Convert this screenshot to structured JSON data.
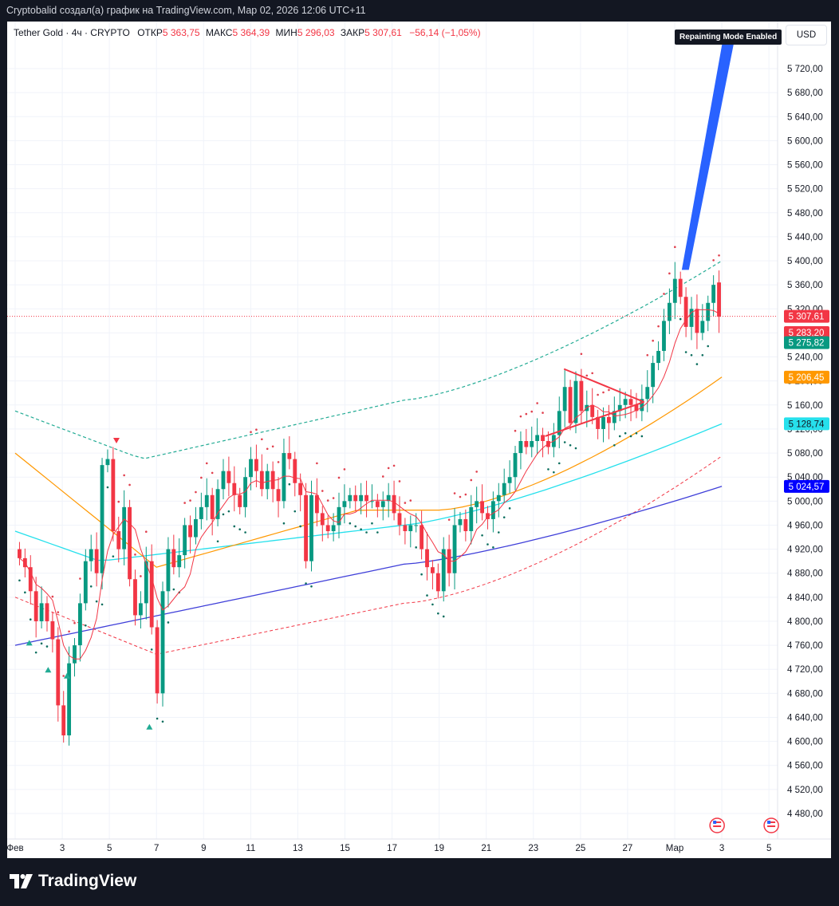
{
  "caption": "Cryptobalid создал(а) график на TradingView.com, Мар 02, 2026 12:06 UTC+11",
  "legend": {
    "symbol": "Tether Gold · 4ч · CRYPTO",
    "open_label": "ОТКР",
    "open": "5 363,75",
    "high_label": "МАКС",
    "high": "5 364,39",
    "low_label": "МИН",
    "low": "5 296,03",
    "close_label": "ЗАКР",
    "close": "5 307,61",
    "change": "−56,14 (−1,05%)"
  },
  "badge": "Repainting Mode Enabled",
  "currency": "USD",
  "footer": {
    "brand": "TradingView"
  },
  "colors": {
    "up": "#089981",
    "down": "#f23645",
    "blue_band": "#2962ff",
    "cyan": "#26e0ec",
    "orange": "#ff9800",
    "navy": "#3f3fd9"
  },
  "chart_data": {
    "type": "candlestick",
    "symbol": "Tether Gold",
    "interval": "4ч",
    "ylim": [
      4440,
      5780
    ],
    "y_ticks": [
      "5 720,00",
      "5 680,00",
      "5 640,00",
      "5 600,00",
      "5 560,00",
      "5 520,00",
      "5 480,00",
      "5 440,00",
      "5 400,00",
      "5 360,00",
      "5 320,00",
      "5 280,00",
      "5 240,00",
      "5 200,00",
      "5 160,00",
      "5 120,00",
      "5 080,00",
      "5 040,00",
      "5 000,00",
      "4 960,00",
      "4 920,00",
      "4 880,00",
      "4 840,00",
      "4 800,00",
      "4 760,00",
      "4 720,00",
      "4 680,00",
      "4 640,00",
      "4 600,00",
      "4 560,00",
      "4 520,00",
      "4 480,00"
    ],
    "y_tick_values": [
      5720,
      5680,
      5640,
      5600,
      5560,
      5520,
      5480,
      5440,
      5400,
      5360,
      5320,
      5280,
      5240,
      5200,
      5160,
      5120,
      5080,
      5040,
      5000,
      4960,
      4920,
      4880,
      4840,
      4800,
      4760,
      4720,
      4680,
      4640,
      4600,
      4560,
      4520,
      4480
    ],
    "x_ticks": [
      "Фев",
      "3",
      "5",
      "7",
      "9",
      "11",
      "13",
      "15",
      "17",
      "19",
      "21",
      "23",
      "25",
      "27",
      "Мар",
      "3",
      "5"
    ],
    "x_tick_days": [
      0,
      2,
      4,
      6,
      8,
      10,
      12,
      14,
      16,
      18,
      20,
      22,
      24,
      26,
      28,
      30,
      32
    ],
    "price_labels": [
      {
        "text": "5 307,61",
        "value": 5307.61,
        "bg": "#f23645",
        "fg": "#ffffff"
      },
      {
        "text": "5 283,20",
        "value": 5283.2,
        "bg": "#f23645",
        "fg": "#ffffff"
      },
      {
        "text": "5 275,82",
        "value": 5275.82,
        "bg": "#089981",
        "fg": "#ffffff"
      },
      {
        "text": "5 206,45",
        "value": 5206.45,
        "bg": "#ff9800",
        "fg": "#ffffff"
      },
      {
        "text": "5 128,74",
        "value": 5128.74,
        "bg": "#26e0ec",
        "fg": "#131722"
      },
      {
        "text": "5 024,57",
        "value": 5024.57,
        "bg": "#0000ff",
        "fg": "#ffffff"
      }
    ],
    "last_price": 5307.61,
    "candle_closes": [
      4905,
      4890,
      4850,
      4800,
      4830,
      4800,
      4770,
      4660,
      4610,
      4730,
      4760,
      4830,
      4900,
      4920,
      4880,
      5060,
      5070,
      4950,
      4920,
      4990,
      4870,
      4810,
      4830,
      4900,
      4790,
      4680,
      4850,
      4920,
      4890,
      4910,
      4960,
      4940,
      4970,
      4990,
      5010,
      4970,
      5020,
      5050,
      5030,
      5010,
      4990,
      5040,
      5070,
      5050,
      5020,
      5050,
      5020,
      5000,
      5080,
      5070,
      5030,
      5010,
      4900,
      5010,
      4980,
      4960,
      4950,
      4960,
      4990,
      5000,
      5010,
      5000,
      5010,
      5000,
      5000,
      4990,
      5000,
      5010,
      4980,
      4960,
      4950,
      4960,
      4960,
      4920,
      4890,
      4880,
      4850,
      4920,
      4880,
      4960,
      4970,
      4950,
      4990,
      5000,
      4980,
      4970,
      5000,
      5010,
      5030,
      5040,
      5080,
      5100,
      5090,
      5100,
      5110,
      5100,
      5090,
      5110,
      5150,
      5190,
      5130,
      5200,
      5150,
      5160,
      5140,
      5120,
      5140,
      5130,
      5150,
      5160,
      5170,
      5160,
      5150,
      5170,
      5190,
      5230,
      5250,
      5300,
      5330,
      5370,
      5340,
      5290,
      5320,
      5280,
      5300,
      5330,
      5360,
      5307
    ],
    "candle_opens": [
      4920,
      4905,
      4890,
      4850,
      4800,
      4830,
      4800,
      4770,
      4660,
      4610,
      4730,
      4760,
      4830,
      4900,
      4920,
      4880,
      5060,
      5070,
      4950,
      4920,
      4990,
      4870,
      4810,
      4830,
      4900,
      4790,
      4680,
      4850,
      4920,
      4890,
      4910,
      4960,
      4940,
      4970,
      4990,
      5010,
      4970,
      5020,
      5050,
      5030,
      5010,
      4990,
      5040,
      5070,
      5050,
      5020,
      5050,
      5020,
      5000,
      5080,
      5070,
      5030,
      5010,
      4900,
      5010,
      4980,
      4960,
      4950,
      4960,
      4990,
      5000,
      5010,
      5000,
      5010,
      5000,
      5000,
      4990,
      5000,
      5010,
      4980,
      4960,
      4950,
      4960,
      4960,
      4920,
      4890,
      4880,
      4850,
      4920,
      4880,
      4960,
      4970,
      4950,
      4990,
      5000,
      4980,
      4970,
      5000,
      5010,
      5030,
      5040,
      5080,
      5100,
      5090,
      5100,
      5110,
      5100,
      5090,
      5110,
      5150,
      5190,
      5130,
      5200,
      5150,
      5160,
      5140,
      5120,
      5140,
      5130,
      5150,
      5160,
      5170,
      5160,
      5150,
      5170,
      5190,
      5230,
      5250,
      5300,
      5330,
      5370,
      5340,
      5290,
      5320,
      5280,
      5300,
      5330,
      5364
    ],
    "upper_band_start": 5150,
    "upper_band_end": 5400,
    "lower_band_start": 4840,
    "lower_band_end": 5075,
    "navy_ma_start": 4760,
    "navy_ma_end": 5024.57,
    "cyan_ma_start": 4950,
    "cyan_ma_end": 5128.74,
    "orange_ma_start": 5080,
    "orange_ma_end": 5206.45,
    "red_ma_end": 5283.2,
    "triangle": {
      "top": [
        5220,
        5165
      ],
      "bottom": [
        5108,
        5165
      ]
    },
    "projection": {
      "from": 5385,
      "to": 5780
    },
    "markers": [
      {
        "type": "sell",
        "day": 4.3,
        "value": 5100
      },
      {
        "type": "buy",
        "day": 0.6,
        "value": 4765
      },
      {
        "type": "buy",
        "day": 1.4,
        "value": 4720
      },
      {
        "type": "buy",
        "day": 2.2,
        "value": 4710
      },
      {
        "type": "buy",
        "day": 5.7,
        "value": 4625
      }
    ]
  }
}
